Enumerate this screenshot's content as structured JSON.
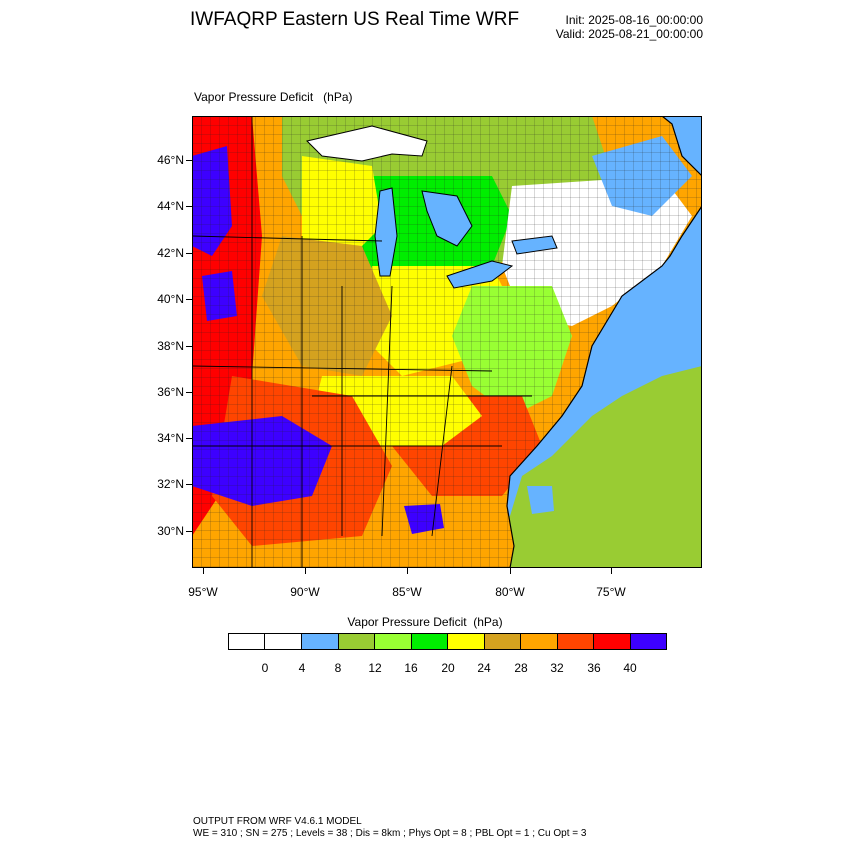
{
  "header": {
    "title": "IWFAQRP Eastern US Real Time WRF",
    "init": "Init: 2025-08-16_00:00:00",
    "valid": "Valid: 2025-08-21_00:00:00"
  },
  "map": {
    "title": "Vapor Pressure Deficit   (hPa)",
    "lat_labels": [
      "46°N",
      "44°N",
      "42°N",
      "40°N",
      "38°N",
      "36°N",
      "34°N",
      "32°N",
      "30°N"
    ],
    "lon_labels": [
      "95°W",
      "90°W",
      "85°W",
      "80°W",
      "75°W"
    ],
    "ocean_color": "#66b3ff"
  },
  "colorbar": {
    "title": "Vapor Pressure Deficit  (hPa)",
    "colors": [
      "#ffffff",
      "#ffffff",
      "#66b3ff",
      "#99cc33",
      "#99ff33",
      "#00ee00",
      "#ffff00",
      "#d4a21f",
      "#ffa500",
      "#ff4500",
      "#ff0000",
      "#3d00ff"
    ],
    "labels": [
      "0",
      "4",
      "8",
      "12",
      "16",
      "20",
      "24",
      "28",
      "32",
      "36",
      "40"
    ]
  },
  "footer": {
    "line1": "OUTPUT FROM WRF V4.6.1 MODEL",
    "line2": "WE = 310 ; SN = 275 ; Levels = 38 ; Dis = 8km ; Phys Opt = 8 ; PBL Opt = 1 ; Cu Opt = 3"
  }
}
